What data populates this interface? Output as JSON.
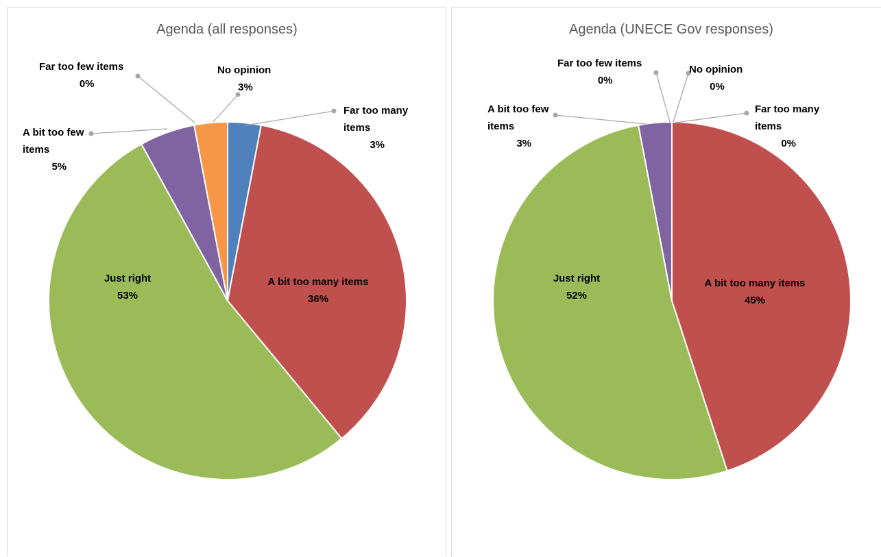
{
  "chart_data": [
    {
      "type": "pie",
      "title": "Agenda (all responses)",
      "slices": [
        {
          "name": "Far too many items",
          "value": 3,
          "label": "3%",
          "color": "#4f81bd"
        },
        {
          "name": "A bit too many items",
          "value": 36,
          "label": "36%",
          "color": "#c0504d"
        },
        {
          "name": "Just right",
          "value": 53,
          "label": "53%",
          "color": "#9bbb59"
        },
        {
          "name": "A bit too few items",
          "value": 5,
          "label": "5%",
          "color": "#8064a2"
        },
        {
          "name": "Far too few items",
          "value": 0,
          "label": "0%",
          "color": "#4bacc6"
        },
        {
          "name": "No opinion",
          "value": 3,
          "label": "3%",
          "color": "#f79646"
        }
      ]
    },
    {
      "type": "pie",
      "title": "Agenda (UNECE Gov responses)",
      "slices": [
        {
          "name": "Far too many items",
          "value": 0,
          "label": "0%",
          "color": "#4f81bd"
        },
        {
          "name": "A bit too many items",
          "value": 45,
          "label": "45%",
          "color": "#c0504d"
        },
        {
          "name": "Just right",
          "value": 52,
          "label": "52%",
          "color": "#9bbb59"
        },
        {
          "name": "A bit too few items",
          "value": 3,
          "label": "3%",
          "color": "#8064a2"
        },
        {
          "name": "Far too few items",
          "value": 0,
          "label": "0%",
          "color": "#4bacc6"
        },
        {
          "name": "No opinion",
          "value": 0,
          "label": "0%",
          "color": "#f79646"
        }
      ]
    }
  ]
}
